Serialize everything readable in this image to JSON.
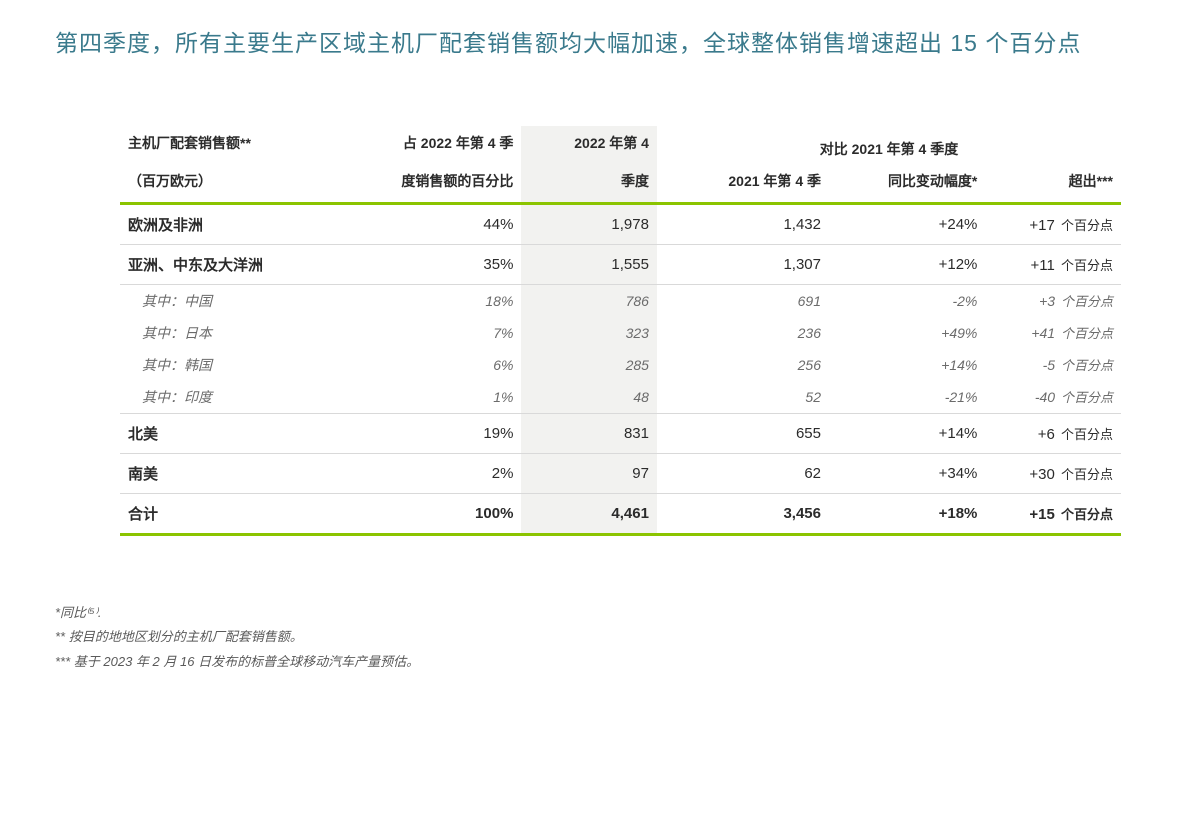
{
  "title": "第四季度，所有主要生产区域主机厂配套销售额均大幅加速，全球整体销售增速超出 15 个百分点",
  "header": {
    "col1_line1": "主机厂配套销售额**",
    "col1_line2": "（百万欧元）",
    "col2_line1": "占 2022 年第 4 季",
    "col2_line2": "度销售额的百分比",
    "col3_line1": "2022 年第 4",
    "col3_line2": "季度",
    "group_head": "对比 2021 年第 4 季度",
    "col4": "2021 年第 4 季",
    "col5": "同比变动幅度*",
    "col6": "超出***"
  },
  "row_suffix": "个百分点",
  "rows": {
    "r0": {
      "region": "欧洲及非洲",
      "pct": "44%",
      "q4": "1,978",
      "q4prev": "1,432",
      "yoy": "+24%",
      "out": "+17"
    },
    "r1": {
      "region": "亚洲、中东及大洋洲",
      "pct": "35%",
      "q4": "1,555",
      "q4prev": "1,307",
      "yoy": "+12%",
      "out": "+11"
    },
    "r2": {
      "region": "其中：中国",
      "pct": "18%",
      "q4": "786",
      "q4prev": "691",
      "yoy": "-2%",
      "out": "+3"
    },
    "r3": {
      "region": "其中：日本",
      "pct": "7%",
      "q4": "323",
      "q4prev": "236",
      "yoy": "+49%",
      "out": "+41"
    },
    "r4": {
      "region": "其中：韩国",
      "pct": "6%",
      "q4": "285",
      "q4prev": "256",
      "yoy": "+14%",
      "out": "-5"
    },
    "r5": {
      "region": "其中：印度",
      "pct": "1%",
      "q4": "48",
      "q4prev": "52",
      "yoy": "-21%",
      "out": "-40"
    },
    "r6": {
      "region": "北美",
      "pct": "19%",
      "q4": "831",
      "q4prev": "655",
      "yoy": "+14%",
      "out": "+6"
    },
    "r7": {
      "region": "南美",
      "pct": "2%",
      "q4": "97",
      "q4prev": "62",
      "yoy": "+34%",
      "out": "+30"
    },
    "total": {
      "region": "合计",
      "pct": "100%",
      "q4": "4,461",
      "q4prev": "3,456",
      "yoy": "+18%",
      "out": "+15"
    }
  },
  "footnotes": {
    "f1": "*同比⁽⁵⁾.",
    "f2": "** 按目的地地区划分的主机厂配套销售额。",
    "f3": "*** 基于 2023 年 2 月 16 日发布的标普全球移动汽车产量预估。"
  },
  "style": {
    "accent_color": "#8bc400",
    "title_color": "#3a7a8c",
    "highlight_bg": "#f2f2f0",
    "border_color": "#d9d9d9",
    "text_color": "#2b2b2b",
    "sub_text_color": "#6b6b6b",
    "background_color": "#ffffff"
  }
}
